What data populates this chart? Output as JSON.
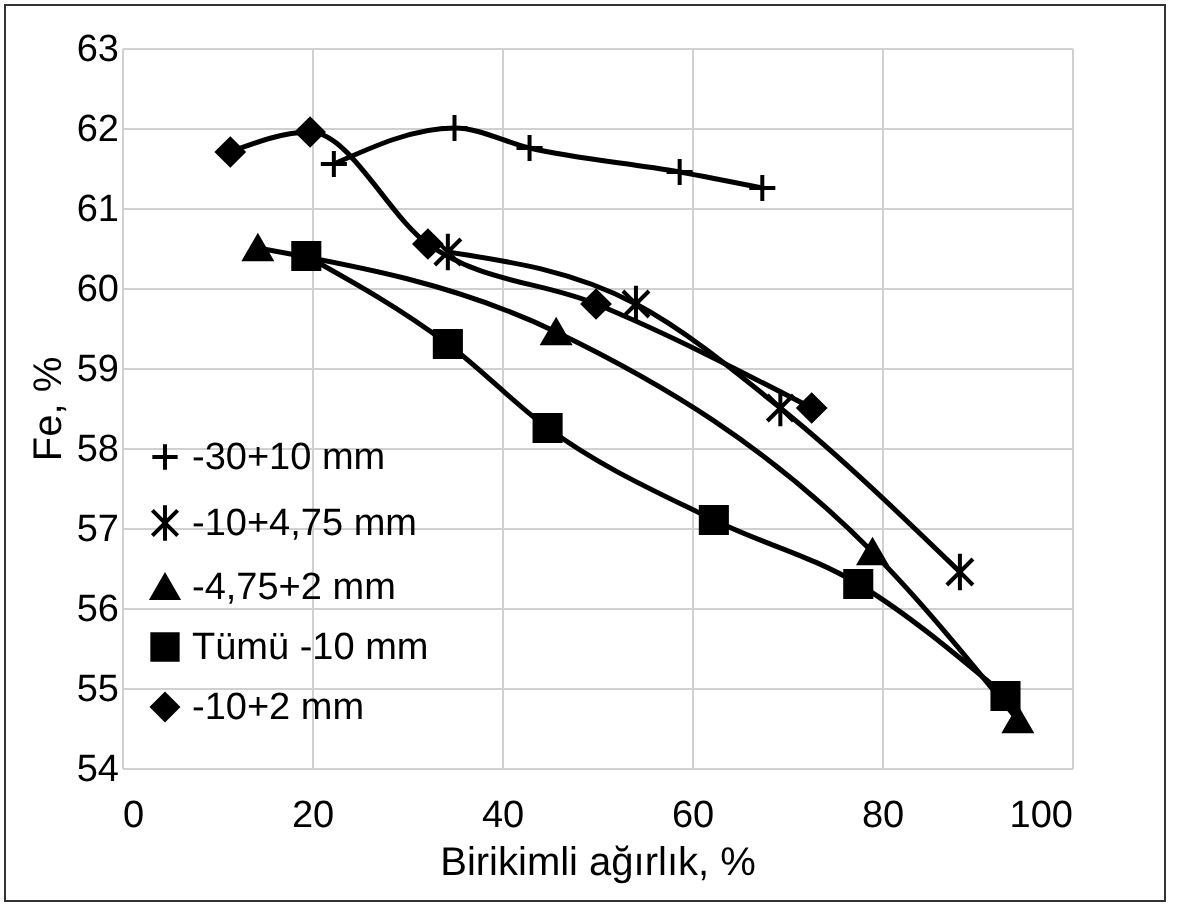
{
  "chart_data": {
    "type": "line",
    "xlabel": "Birikimli ağırlık, %",
    "ylabel": "Fe, %",
    "xlim": [
      0,
      100
    ],
    "xticks": [
      0,
      20,
      40,
      60,
      80,
      100
    ],
    "ylim": [
      54,
      63
    ],
    "yticks": [
      54,
      55,
      56,
      57,
      58,
      59,
      60,
      61,
      62,
      63
    ],
    "grid": true,
    "legend": "left",
    "series": [
      {
        "name": "-30+10 mm",
        "color": "#000000",
        "marker": "cross",
        "x": [
          22.3,
          35,
          42.9,
          58.7,
          67.4
        ],
        "values": [
          61.55,
          62.0,
          61.75,
          61.45,
          61.25
        ]
      },
      {
        "name": " -10+4,75 mm",
        "color": "#000000",
        "marker": "cross",
        "x": [
          34.3,
          54.1,
          69.3,
          88.2
        ],
        "values": [
          60.45,
          59.8,
          58.5,
          56.45
        ]
      },
      {
        "name": "-4,75+2 mm",
        "color": "#000000",
        "marker": "triangle",
        "x": [
          14.3,
          45.7,
          79,
          94.3
        ],
        "values": [
          60.5,
          59.45,
          56.7,
          54.6
        ]
      },
      {
        "name": "Tümü -10 mm",
        "color": "#000000",
        "marker": "square",
        "x": [
          19.4,
          34.3,
          44.8,
          62.3,
          77.5,
          93
        ],
        "values": [
          60.4,
          59.3,
          58.25,
          57.1,
          56.3,
          54.9
        ]
      },
      {
        "name": "-10+2 mm",
        "color": "#000000",
        "marker": "diamond",
        "x": [
          11.4,
          19.8,
          32.2,
          49.9,
          72.6
        ],
        "values": [
          61.7,
          61.95,
          60.55,
          59.8,
          58.5
        ]
      }
    ]
  }
}
